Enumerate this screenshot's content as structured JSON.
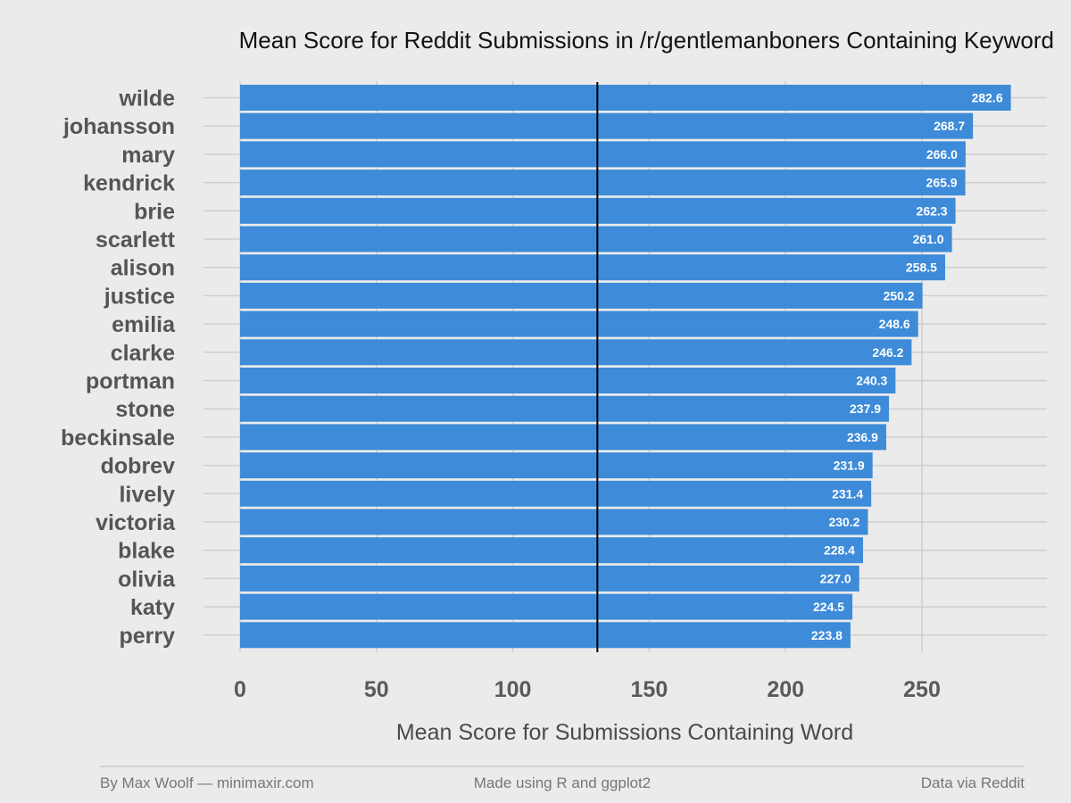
{
  "chart_data": {
    "type": "bar",
    "orientation": "horizontal",
    "title": "Mean Score for Reddit Submissions in /r/gentlemanboners Containing Keyword",
    "xlabel": "Mean Score for Submissions Containing Word",
    "ylabel": "",
    "categories": [
      "wilde",
      "johansson",
      "mary",
      "kendrick",
      "brie",
      "scarlett",
      "alison",
      "justice",
      "emilia",
      "clarke",
      "portman",
      "stone",
      "beckinsale",
      "dobrev",
      "lively",
      "victoria",
      "blake",
      "olivia",
      "katy",
      "perry"
    ],
    "values": [
      282.6,
      268.7,
      266.0,
      265.9,
      262.3,
      261.0,
      258.5,
      250.2,
      248.6,
      246.2,
      240.3,
      237.9,
      236.9,
      231.9,
      231.4,
      230.2,
      228.4,
      227.0,
      224.5,
      223.8
    ],
    "data_labels": [
      "282.6",
      "268.7",
      "266.0",
      "265.9",
      "262.3",
      "261.0",
      "258.5",
      "250.2",
      "248.6",
      "246.2",
      "240.3",
      "237.9",
      "236.9",
      "231.9",
      "231.4",
      "230.2",
      "228.4",
      "227.0",
      "224.5",
      "223.8"
    ],
    "x_ticks": [
      0,
      50,
      100,
      150,
      200,
      250
    ],
    "x_tick_labels": [
      "0",
      "50",
      "100",
      "150",
      "200",
      "250"
    ],
    "xlim": [
      0,
      290
    ],
    "reference_line": 131,
    "grid": true,
    "legend": "none"
  },
  "footer": {
    "left": "By Max Woolf — minimaxir.com",
    "center": "Made using R and ggplot2",
    "right": "Data via Reddit"
  },
  "colors": {
    "bar": "#3d8bd9",
    "background": "#ebebeb",
    "grid": "#cfcfcf",
    "reference_line": "#000000"
  }
}
